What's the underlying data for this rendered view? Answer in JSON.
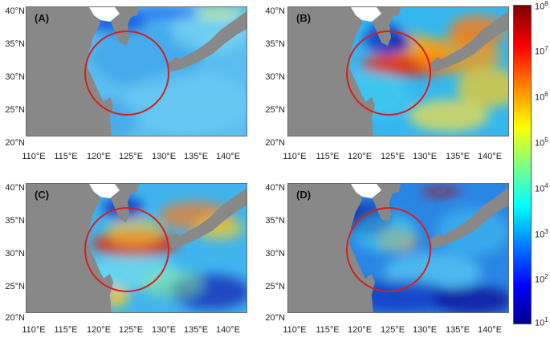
{
  "panels": [
    {
      "label": "(A)",
      "variant": "A"
    },
    {
      "label": "(B)",
      "variant": "B"
    },
    {
      "label": "(C)",
      "variant": "C"
    },
    {
      "label": "(D)",
      "variant": "D"
    }
  ],
  "axes": {
    "x_ticks": [
      "110°E",
      "115°E",
      "120°E",
      "125°E",
      "130°E",
      "135°E",
      "140°E"
    ],
    "y_ticks": [
      "40°N",
      "35°N",
      "30°N",
      "25°N",
      "20°N"
    ]
  },
  "colorbar": {
    "base": "10",
    "exponents": [
      "8",
      "7",
      "6",
      "5",
      "4",
      "3",
      "2",
      "1"
    ],
    "range": [
      1,
      8
    ],
    "scale": "log",
    "colormap": [
      "#00008f",
      "#0000ff",
      "#0080ff",
      "#00ffff",
      "#80ff80",
      "#ffff00",
      "#ff8000",
      "#ff0000",
      "#800000"
    ]
  },
  "colors": {
    "land": "#888888",
    "ice_white": "#ffffff",
    "circle": "#d42020"
  }
}
